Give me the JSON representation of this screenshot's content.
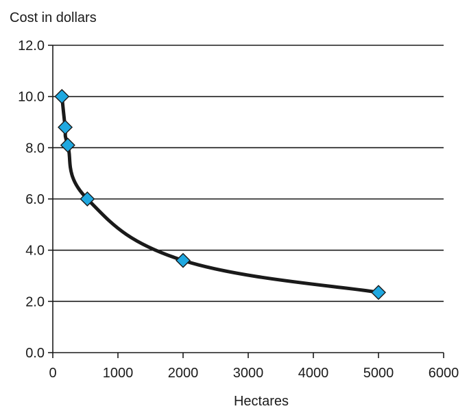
{
  "chart_data": {
    "type": "scatter",
    "title": "",
    "xlabel": "Hectares",
    "ylabel": "Cost in dollars",
    "xlim": [
      0,
      6000
    ],
    "ylim": [
      0,
      12
    ],
    "x_ticks": [
      0,
      1000,
      2000,
      3000,
      4000,
      5000,
      6000
    ],
    "x_tick_labels": [
      "0",
      "1000",
      "2000",
      "3000",
      "4000",
      "5000",
      "6000"
    ],
    "y_ticks": [
      0,
      2,
      4,
      6,
      8,
      10,
      12
    ],
    "y_tick_labels": [
      "0.0",
      "2.0",
      "4.0",
      "6.0",
      "8.0",
      "10.0",
      "12.0"
    ],
    "grid": "horizontal",
    "legend": "none",
    "series": [
      {
        "marker": "diamond",
        "marker_color": "#1fa8e0",
        "line_color": "#1a1a1a",
        "smoothed_line": true,
        "points": [
          {
            "x": 140,
            "y": 10.0
          },
          {
            "x": 190,
            "y": 8.8
          },
          {
            "x": 230,
            "y": 8.1
          },
          {
            "x": 530,
            "y": 6.0
          },
          {
            "x": 2000,
            "y": 3.6
          },
          {
            "x": 5000,
            "y": 2.35
          }
        ]
      }
    ]
  }
}
